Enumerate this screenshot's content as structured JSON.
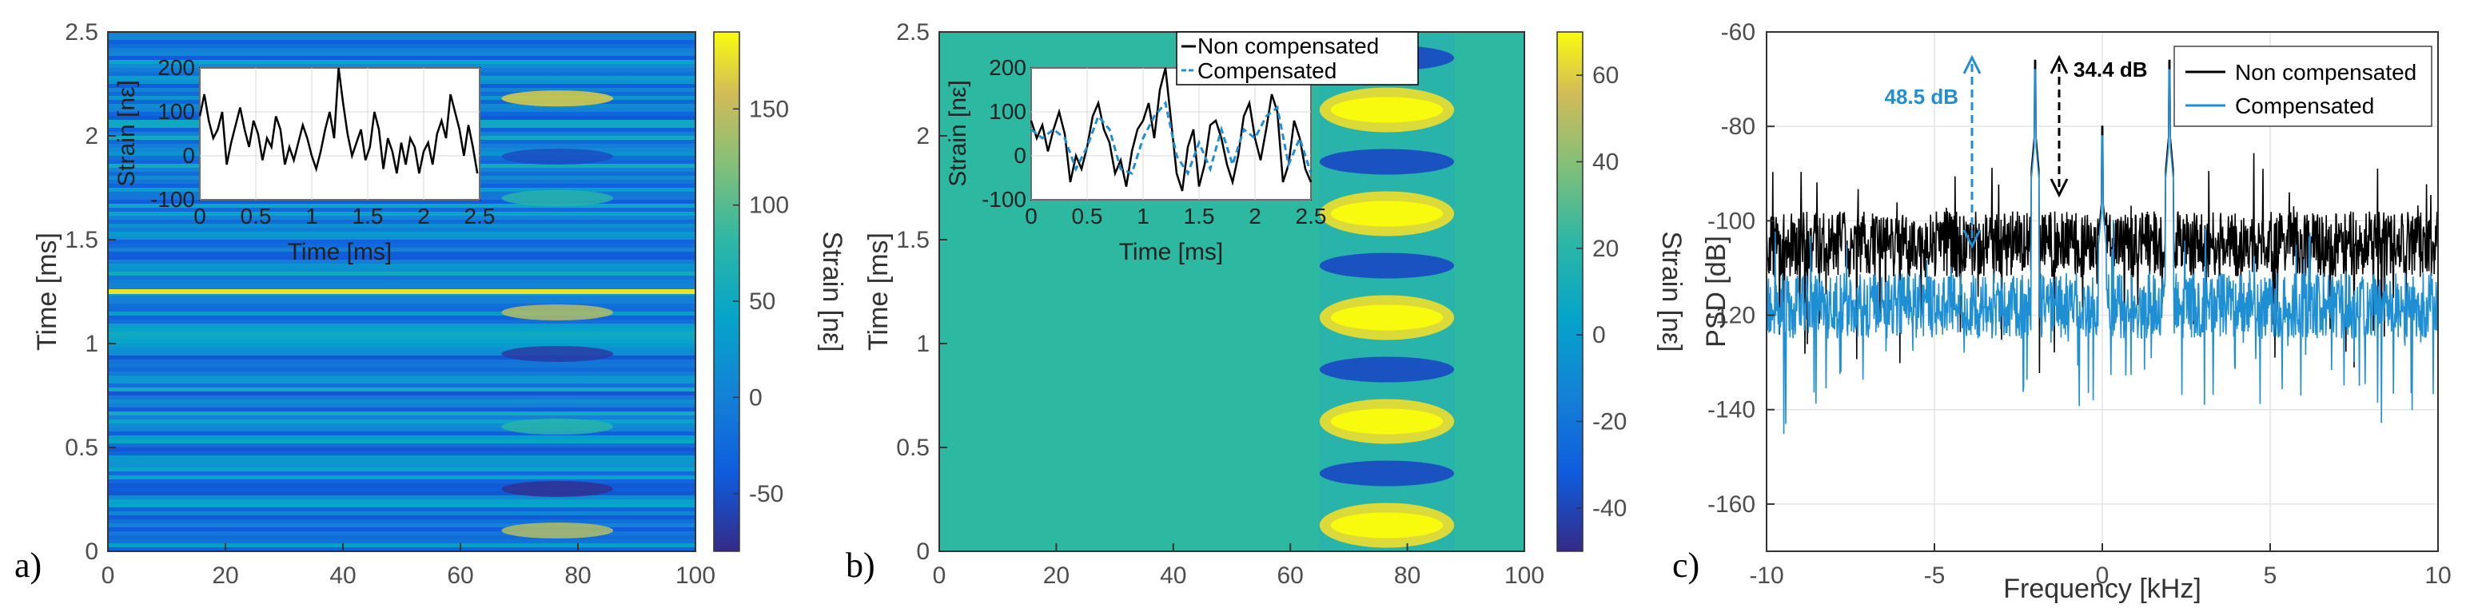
{
  "chart_data": [
    {
      "type": "heatmap",
      "panel_label": "a)",
      "ylabel": "Time [ms]",
      "xlabel": "",
      "xlim": [
        0,
        100
      ],
      "ylim": [
        0,
        2.5
      ],
      "x_ticks": [
        "0",
        "20",
        "40",
        "60",
        "80",
        "100"
      ],
      "y_ticks": [
        "0",
        "0.5",
        "1",
        "1.5",
        "2",
        "2.5"
      ],
      "colorbar": {
        "label": "Strain [nε]",
        "range": [
          -80,
          190
        ],
        "ticks": [
          "-50",
          "0",
          "50",
          "100",
          "150"
        ]
      },
      "inset": {
        "type": "line",
        "xlabel": "Time [ms]",
        "ylabel": "Strain [nε]",
        "xlim": [
          0,
          2.5
        ],
        "ylim": [
          -100,
          200
        ],
        "x_ticks": [
          "0",
          "0.5",
          "1",
          "1.5",
          "2",
          "2.5"
        ],
        "y_ticks": [
          "-100",
          "0",
          "100",
          "200"
        ],
        "series": [
          {
            "color": "#000000",
            "x": [
              0,
              0.04,
              0.08,
              0.12,
              0.16,
              0.2,
              0.24,
              0.28,
              0.32,
              0.36,
              0.4,
              0.44,
              0.48,
              0.52,
              0.56,
              0.6,
              0.64,
              0.68,
              0.72,
              0.76,
              0.8,
              0.84,
              0.88,
              0.92,
              0.96,
              1.0,
              1.04,
              1.08,
              1.12,
              1.16,
              1.2,
              1.24,
              1.28,
              1.32,
              1.36,
              1.4,
              1.44,
              1.48,
              1.52,
              1.56,
              1.6,
              1.64,
              1.68,
              1.72,
              1.76,
              1.8,
              1.84,
              1.88,
              1.92,
              1.96,
              2.0,
              2.04,
              2.08,
              2.12,
              2.16,
              2.2,
              2.24,
              2.28,
              2.32,
              2.36,
              2.4,
              2.44,
              2.48
            ],
            "y": [
              90,
              140,
              80,
              40,
              60,
              100,
              -20,
              30,
              70,
              110,
              60,
              20,
              80,
              50,
              -10,
              40,
              20,
              90,
              60,
              -20,
              20,
              -10,
              30,
              70,
              40,
              0,
              -30,
              10,
              60,
              100,
              40,
              210,
              120,
              50,
              0,
              30,
              60,
              -10,
              20,
              100,
              60,
              -30,
              40,
              10,
              -40,
              30,
              -20,
              40,
              20,
              -40,
              10,
              30,
              -20,
              50,
              80,
              40,
              140,
              100,
              60,
              0,
              70,
              20,
              -40
            ]
          }
        ]
      }
    },
    {
      "type": "heatmap",
      "panel_label": "b)",
      "ylabel": "Time [ms]",
      "xlabel": "",
      "xlim": [
        0,
        100
      ],
      "ylim": [
        0,
        2.5
      ],
      "x_ticks": [
        "0",
        "20",
        "40",
        "60",
        "80",
        "100"
      ],
      "y_ticks": [
        "0",
        "0.5",
        "1",
        "1.5",
        "2",
        "2.5"
      ],
      "colorbar": {
        "label": "Strain [nε]",
        "range": [
          -50,
          70
        ],
        "ticks": [
          "-40",
          "-20",
          "0",
          "20",
          "40",
          "60"
        ]
      },
      "inset": {
        "type": "line",
        "xlabel": "Time [ms]",
        "ylabel": "Strain [nε]",
        "xlim": [
          0,
          2.5
        ],
        "ylim": [
          -100,
          200
        ],
        "x_ticks": [
          "0",
          "0.5",
          "1",
          "1.5",
          "2",
          "2.5"
        ],
        "y_ticks": [
          "-100",
          "0",
          "100",
          "200"
        ],
        "legend": [
          "Non compensated",
          "Compensated"
        ],
        "series": [
          {
            "name": "Non compensated",
            "color": "#000000",
            "x": [
              0,
              0.05,
              0.1,
              0.15,
              0.2,
              0.25,
              0.3,
              0.35,
              0.4,
              0.45,
              0.5,
              0.55,
              0.6,
              0.65,
              0.7,
              0.75,
              0.8,
              0.85,
              0.9,
              0.95,
              1.0,
              1.05,
              1.1,
              1.15,
              1.2,
              1.25,
              1.3,
              1.35,
              1.4,
              1.45,
              1.5,
              1.55,
              1.6,
              1.65,
              1.7,
              1.75,
              1.8,
              1.85,
              1.9,
              1.95,
              2.0,
              2.05,
              2.1,
              2.15,
              2.2,
              2.25,
              2.3,
              2.35,
              2.4,
              2.45,
              2.5
            ],
            "y": [
              80,
              40,
              70,
              10,
              60,
              100,
              50,
              -60,
              0,
              -30,
              20,
              90,
              120,
              60,
              30,
              -40,
              -10,
              -70,
              10,
              60,
              80,
              120,
              40,
              150,
              200,
              80,
              -40,
              -80,
              20,
              60,
              -70,
              -20,
              70,
              80,
              40,
              -20,
              -60,
              0,
              90,
              120,
              40,
              -10,
              60,
              140,
              100,
              -60,
              -20,
              80,
              40,
              -30,
              -60
            ]
          },
          {
            "name": "Compensated",
            "color": "#1f8fd4",
            "x": [
              0,
              0.1,
              0.2,
              0.3,
              0.4,
              0.5,
              0.6,
              0.7,
              0.8,
              0.9,
              1.0,
              1.1,
              1.2,
              1.3,
              1.4,
              1.5,
              1.6,
              1.7,
              1.8,
              1.9,
              2.0,
              2.1,
              2.2,
              2.3,
              2.4,
              2.5
            ],
            "y": [
              60,
              40,
              60,
              40,
              -30,
              20,
              90,
              60,
              -30,
              -40,
              40,
              90,
              120,
              0,
              -40,
              30,
              -30,
              60,
              -20,
              60,
              40,
              90,
              110,
              -20,
              40,
              -40
            ]
          }
        ]
      }
    },
    {
      "type": "line",
      "panel_label": "c)",
      "xlabel": "Frequency [kHz]",
      "ylabel": "PSD [dB]",
      "xlim": [
        -10,
        10
      ],
      "ylim": [
        -170,
        -60
      ],
      "x_ticks": [
        "-10",
        "-5",
        "0",
        "5",
        "10"
      ],
      "y_ticks": [
        "-160",
        "-140",
        "-120",
        "-100",
        "-80",
        "-60"
      ],
      "grid": true,
      "legend_position": "top-right",
      "legend": [
        "Non compensated",
        "Compensated"
      ],
      "series": [
        {
          "name": "Non compensated",
          "color": "#000000",
          "noise_floor_db": -105,
          "peaks": [
            {
              "f": -2,
              "db": -66
            },
            {
              "f": 0,
              "db": -80
            },
            {
              "f": 2,
              "db": -66
            }
          ]
        },
        {
          "name": "Compensated",
          "color": "#1f8fd4",
          "noise_floor_db": -118,
          "peaks": [
            {
              "f": -2,
              "db": -68
            },
            {
              "f": 0,
              "db": -82
            },
            {
              "f": 2,
              "db": -68
            }
          ]
        }
      ],
      "annotations": [
        {
          "text": "48.5 dB",
          "color": "#1f8fd4"
        },
        {
          "text": "34.4 dB",
          "color": "#000000"
        }
      ]
    }
  ]
}
